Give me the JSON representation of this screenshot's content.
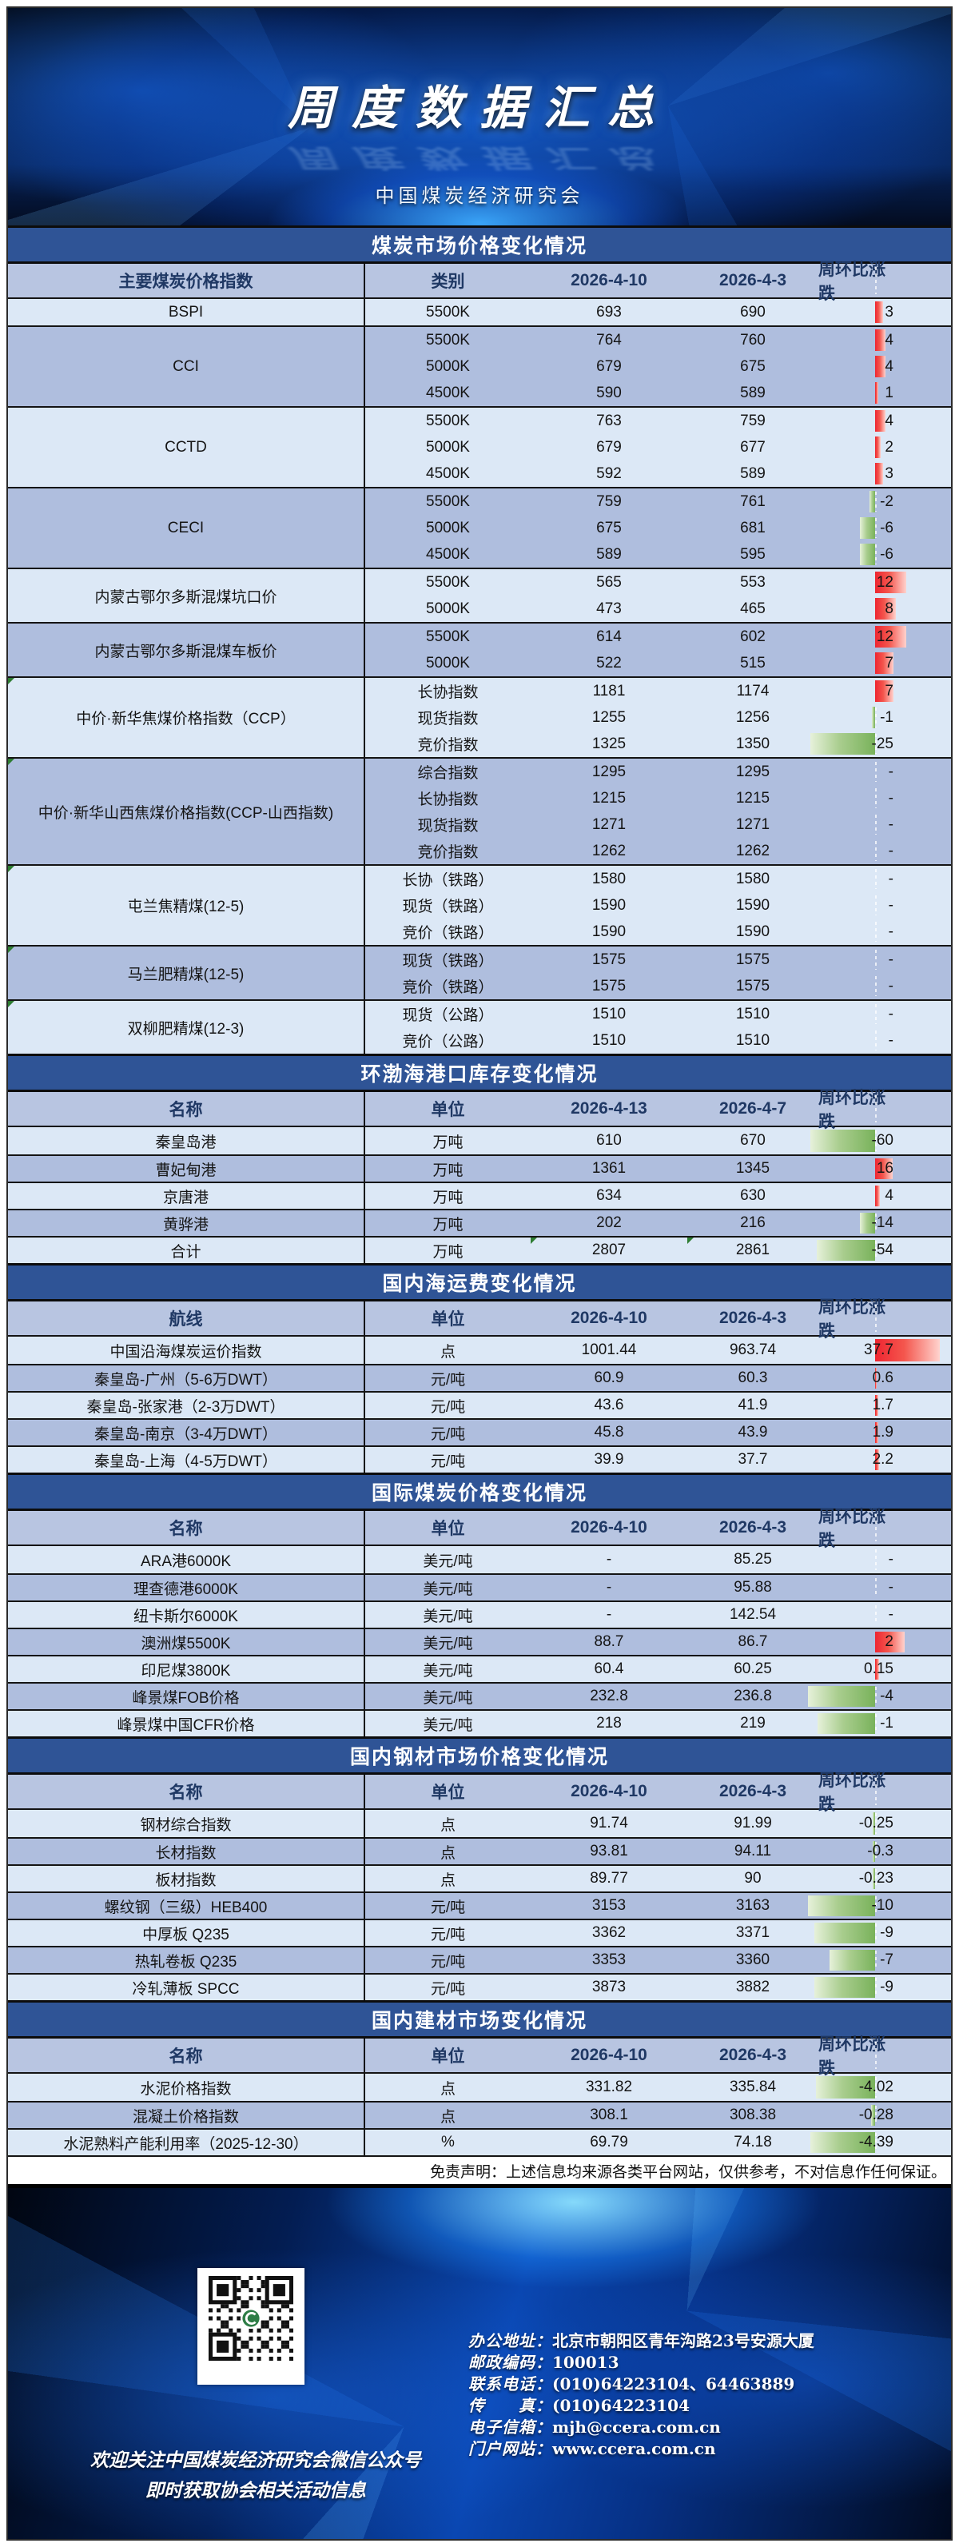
{
  "banner": {
    "title": "周度数据汇总",
    "subtitle": "中国煤炭经济研究会"
  },
  "colors": {
    "band_blue": "#2F5496",
    "header_row": "#B8C5E1",
    "row_light": "#DCE8F6",
    "row_dark": "#AFBEDE",
    "bar_up_red": "#ee2531",
    "bar_down_green": "#79b25b"
  },
  "sections": [
    {
      "title": "煤炭市场价格变化情况",
      "columns": [
        "主要煤炭价格指数",
        "类别",
        "2026-4-10",
        "2026-4-3",
        "周环比涨跌"
      ],
      "groups": [
        {
          "name": "BSPI",
          "rows": [
            [
              "5500K",
              "693",
              "690",
              "3",
              10
            ]
          ]
        },
        {
          "name": "CCI",
          "rows": [
            [
              "5500K",
              "764",
              "760",
              "4",
              13
            ],
            [
              "5000K",
              "679",
              "675",
              "4",
              13
            ],
            [
              "4500K",
              "590",
              "589",
              "1",
              4
            ]
          ]
        },
        {
          "name": "CCTD",
          "rows": [
            [
              "5500K",
              "763",
              "759",
              "4",
              13
            ],
            [
              "5000K",
              "679",
              "677",
              "2",
              7
            ],
            [
              "4500K",
              "592",
              "589",
              "3",
              10
            ]
          ]
        },
        {
          "name": "CECI",
          "rows": [
            [
              "5500K",
              "759",
              "761",
              "-2",
              7
            ],
            [
              "5000K",
              "675",
              "681",
              "-6",
              19
            ],
            [
              "4500K",
              "589",
              "595",
              "-6",
              19
            ]
          ]
        },
        {
          "name": "内蒙古鄂尔多斯混煤坑口价",
          "rows": [
            [
              "5500K",
              "565",
              "553",
              "12",
              39
            ],
            [
              "5000K",
              "473",
              "465",
              "8",
              26
            ]
          ]
        },
        {
          "name": "内蒙古鄂尔多斯混煤车板价",
          "rows": [
            [
              "5500K",
              "614",
              "602",
              "12",
              39
            ],
            [
              "5000K",
              "522",
              "515",
              "7",
              23
            ]
          ]
        },
        {
          "name": "中价·新华焦煤价格指数（CCP）",
          "flag": true,
          "rows": [
            [
              "长协指数",
              "1181",
              "1174",
              "7",
              23
            ],
            [
              "现货指数",
              "1255",
              "1256",
              "-1",
              4
            ],
            [
              "竞价指数",
              "1325",
              "1350",
              "-25",
              81
            ]
          ]
        },
        {
          "name": "中价·新华山西焦煤价格指数(CCP-山西指数)",
          "flag": true,
          "rows": [
            [
              "综合指数",
              "1295",
              "1295",
              "-",
              0
            ],
            [
              "长协指数",
              "1215",
              "1215",
              "-",
              0
            ],
            [
              "现货指数",
              "1271",
              "1271",
              "-",
              0
            ],
            [
              "竞价指数",
              "1262",
              "1262",
              "-",
              0
            ]
          ]
        },
        {
          "name": "屯兰焦精煤(12-5)",
          "flag": true,
          "rows": [
            [
              "长协（铁路）",
              "1580",
              "1580",
              "-",
              0
            ],
            [
              "现货（铁路）",
              "1590",
              "1590",
              "-",
              0
            ],
            [
              "竞价（铁路）",
              "1590",
              "1590",
              "-",
              0
            ]
          ]
        },
        {
          "name": "马兰肥精煤(12-5)",
          "flag": true,
          "rows": [
            [
              "现货（铁路）",
              "1575",
              "1575",
              "-",
              0
            ],
            [
              "竞价（铁路）",
              "1575",
              "1575",
              "-",
              0
            ]
          ]
        },
        {
          "name": "双柳肥精煤(12-3)",
          "flag": true,
          "rows": [
            [
              "现货（公路）",
              "1510",
              "1510",
              "-",
              0
            ],
            [
              "竞价（公路）",
              "1510",
              "1510",
              "-",
              0
            ]
          ]
        }
      ]
    },
    {
      "title": "环渤海港口库存变化情况",
      "columns": [
        "名称",
        "单位",
        "2026-4-13",
        "2026-4-7",
        "周环比涨跌"
      ],
      "rows": [
        [
          "秦皇岛港",
          "万吨",
          "610",
          "670",
          "-60",
          81
        ],
        [
          "曹妃甸港",
          "万吨",
          "1361",
          "1345",
          "16",
          22
        ],
        [
          "京唐港",
          "万吨",
          "634",
          "630",
          "4",
          6
        ],
        [
          "黄骅港",
          "万吨",
          "202",
          "216",
          "-14",
          19
        ],
        [
          "合计",
          "万吨",
          "2807",
          "2861",
          "-54",
          73,
          true
        ]
      ]
    },
    {
      "title": "国内海运费变化情况",
      "columns": [
        "航线",
        "单位",
        "2026-4-10",
        "2026-4-3",
        "周环比涨跌"
      ],
      "rows": [
        [
          "中国沿海煤炭运价指数",
          "点",
          "1001.44",
          "963.74",
          "37.7",
          81
        ],
        [
          "秦皇岛-广州（5-6万DWT）",
          "元/吨",
          "60.9",
          "60.3",
          "0.6",
          2
        ],
        [
          "秦皇岛-张家港（2-3万DWT）",
          "元/吨",
          "43.6",
          "41.9",
          "1.7",
          4
        ],
        [
          "秦皇岛-南京（3-4万DWT）",
          "元/吨",
          "45.8",
          "43.9",
          "1.9",
          4
        ],
        [
          "秦皇岛-上海（4-5万DWT）",
          "元/吨",
          "39.9",
          "37.7",
          "2.2",
          5
        ]
      ]
    },
    {
      "title": "国际煤炭价格变化情况",
      "columns": [
        "名称",
        "单位",
        "2026-4-10",
        "2026-4-3",
        "周环比涨跌"
      ],
      "rows": [
        [
          "ARA港6000K",
          "美元/吨",
          "-",
          "85.25",
          "-",
          0
        ],
        [
          "理查德港6000K",
          "美元/吨",
          "-",
          "95.88",
          "-",
          0
        ],
        [
          "纽卡斯尔6000K",
          "美元/吨",
          "-",
          "142.54",
          "-",
          0
        ],
        [
          "澳洲煤5500K",
          "美元/吨",
          "88.7",
          "86.7",
          "2",
          37
        ],
        [
          "印尼煤3800K",
          "美元/吨",
          "60.4",
          "60.25",
          "0.15",
          5
        ],
        [
          "峰景煤FOB价格",
          "美元/吨",
          "232.8",
          "236.8",
          "-4",
          84
        ],
        [
          "峰景煤中国CFR价格",
          "美元/吨",
          "218",
          "219",
          "-1",
          72
        ]
      ]
    },
    {
      "title": "国内钢材市场价格变化情况",
      "columns": [
        "名称",
        "单位",
        "2026-4-10",
        "2026-4-3",
        "周环比涨跌"
      ],
      "rows": [
        [
          "钢材综合指数",
          "点",
          "91.74",
          "91.99",
          "-0.25",
          3
        ],
        [
          "长材指数",
          "点",
          "93.81",
          "94.11",
          "-0.3",
          3
        ],
        [
          "板材指数",
          "点",
          "89.77",
          "90",
          "-0.23",
          3
        ],
        [
          "螺纹钢（三级）HEB400",
          "元/吨",
          "3153",
          "3163",
          "-10",
          84
        ],
        [
          "中厚板 Q235",
          "元/吨",
          "3362",
          "3371",
          "-9",
          76
        ],
        [
          "热轧卷板 Q235",
          "元/吨",
          "3353",
          "3360",
          "-7",
          57
        ],
        [
          "冷轧薄板 SPCC",
          "元/吨",
          "3873",
          "3882",
          "-9",
          76
        ]
      ]
    },
    {
      "title": "国内建材市场变化情况",
      "columns": [
        "名称",
        "单位",
        "2026-4-10",
        "2026-4-3",
        "周环比涨跌"
      ],
      "rows": [
        [
          "水泥价格指数",
          "点",
          "331.82",
          "335.84",
          "-4.02",
          74
        ],
        [
          "混凝土价格指数",
          "点",
          "308.1",
          "308.38",
          "-0.28",
          5
        ],
        [
          "水泥熟料产能利用率（2025-12-30）",
          "%",
          "69.79",
          "74.18",
          "-4.39",
          81
        ]
      ]
    }
  ],
  "disclaimer": "免责声明：上述信息均来源各类平台网站，仅供参考，不对信息作任何保证。",
  "footer": {
    "qr_icon": "wechat-qr-code",
    "follow_line1": "欢迎关注中国煤炭经济研究会微信公众号",
    "follow_line2": "即时获取协会相关活动信息",
    "contacts": [
      {
        "label": "办公地址：",
        "value": "北京市朝阳区青年沟路23号安源大厦"
      },
      {
        "label": "邮政编码：",
        "value": "100013"
      },
      {
        "label": "联系电话：",
        "value": "(010)64223104、64463889"
      },
      {
        "label": "传　　真：",
        "value": "(010)64223104"
      },
      {
        "label": "电子信箱：",
        "value": "mjh@ccera.com.cn"
      },
      {
        "label": "门户网站：",
        "value": "www.ccera.com.cn"
      }
    ]
  }
}
